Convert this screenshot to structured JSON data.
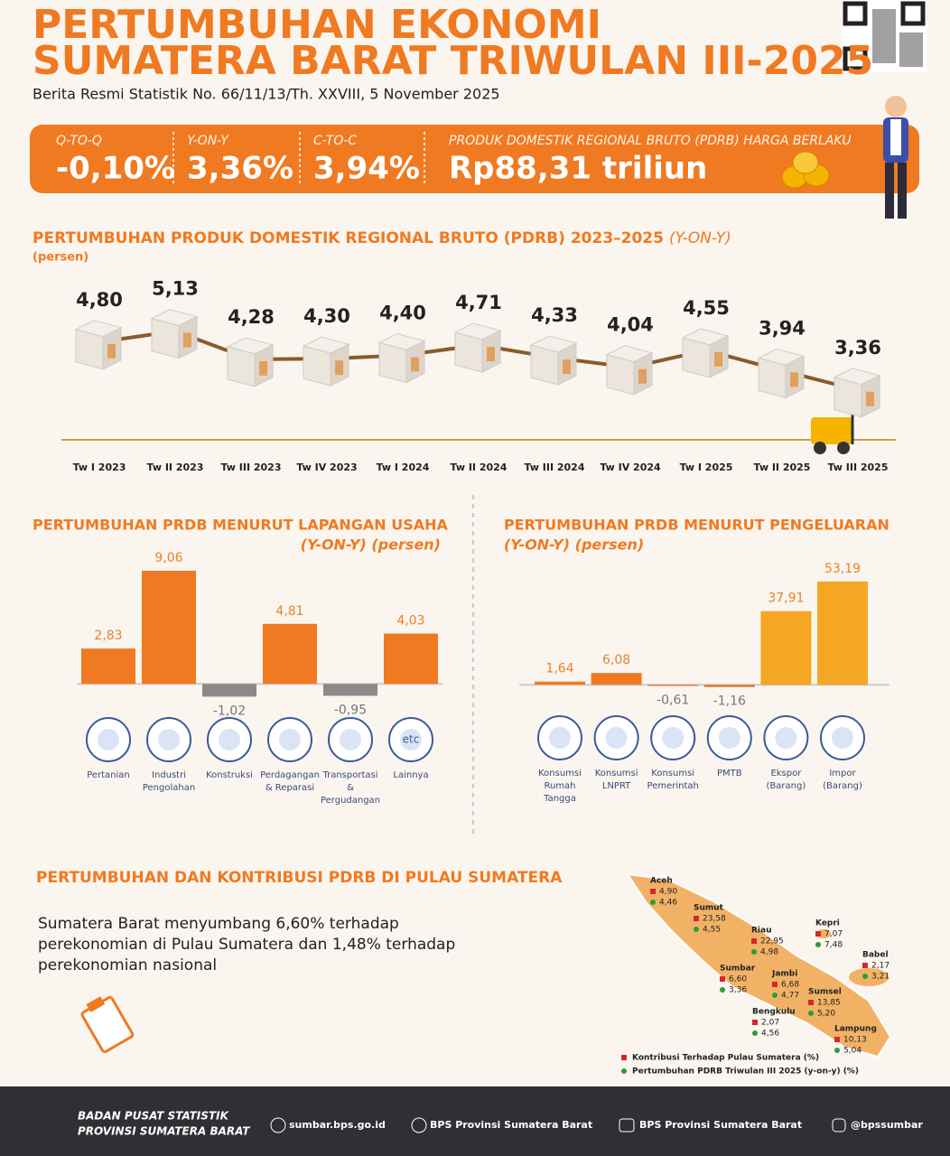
{
  "header": {
    "title_lines": [
      "PERTUMBUHAN EKONOMI",
      "SUMATERA BARAT TRIWULAN III-2025"
    ],
    "subtitle": "Berita Resmi Statistik No. 66/11/13/Th. XXVIII, 5 November 2025"
  },
  "banner": [
    {
      "label": "Q-TO-Q",
      "value": "-0,10%"
    },
    {
      "label": "Y-ON-Y",
      "value": "3,36%"
    },
    {
      "label": "C-TO-C",
      "value": "3,94%"
    },
    {
      "label": "PRODUK DOMESTIK REGIONAL BRUTO (PDRB) HARGA BERLAKU",
      "value": "Rp88,31 triliun"
    }
  ],
  "chart_data": [
    {
      "type": "line",
      "title": "PERTUMBUHAN PRODUK DOMESTIK REGIONAL BRUTO (PDRB) 2023–2025",
      "title_suffix": "(Y-ON-Y)",
      "subtitle": "(persen)",
      "categories": [
        "Tw I 2023",
        "Tw II 2023",
        "Tw III 2023",
        "Tw IV 2023",
        "Tw I 2024",
        "Tw II 2024",
        "Tw III 2024",
        "Tw IV 2024",
        "Tw I 2025",
        "Tw II 2025",
        "Tw III 2025"
      ],
      "values": [
        4.8,
        5.13,
        4.28,
        4.3,
        4.4,
        4.71,
        4.33,
        4.04,
        4.55,
        3.94,
        3.36
      ],
      "value_labels": [
        "4,80",
        "5,13",
        "4,28",
        "4,30",
        "4,40",
        "4,71",
        "4,33",
        "4,04",
        "4,55",
        "3,94",
        "3,36"
      ],
      "color": "#8b5a2b",
      "ylim": [
        3.0,
        5.5
      ]
    },
    {
      "type": "bar",
      "title": "PERTUMBUHAN PRDB MENURUT LAPANGAN USAHA",
      "subtitle": "(Y-ON-Y) (persen)",
      "categories": [
        "Pertanian",
        "Industri Pengolahan",
        "Konstruksi",
        "Perdagangan & Reparasi",
        "Transportasi & Pergudangan",
        "Lainnya"
      ],
      "values": [
        2.83,
        9.06,
        -1.02,
        4.81,
        -0.95,
        4.03
      ],
      "value_labels": [
        "2,83",
        "9,06",
        "-1,02",
        "4,81",
        "-0,95",
        "4,03"
      ],
      "color": "#f07a22",
      "negative_color": "#8a8a8a",
      "ylim": [
        -1.5,
        10
      ],
      "etc_icon": "etc"
    },
    {
      "type": "bar",
      "title": "PERTUMBUHAN PRDB MENURUT PENGELUARAN",
      "subtitle": "(Y-ON-Y) (persen)",
      "categories": [
        "Konsumsi Rumah Tangga",
        "Konsumsi LNPRT",
        "Konsumsi Pemerintah",
        "PMTB",
        "Ekspor (Barang)",
        "Impor (Barang)"
      ],
      "values": [
        1.64,
        6.08,
        -0.61,
        -1.16,
        37.91,
        53.19
      ],
      "value_labels": [
        "1,64",
        "6,08",
        "-0,61",
        "-1,16",
        "37,91",
        "53,19"
      ],
      "colors": [
        "#f07a22",
        "#f07a22",
        "#e07a3a",
        "#e07a3a",
        "#f5a623",
        "#f5a623"
      ],
      "ylim": [
        -5,
        55
      ]
    }
  ],
  "map": {
    "title": "PERTUMBUHAN DAN KONTRIBUSI PDRB DI PULAU SUMATERA",
    "text": "Sumatera Barat menyumbang 6,60% terhadap perekonomian di Pulau Sumatera dan 1,48% terhadap perekonomian nasional",
    "regions": [
      {
        "name": "Aceh",
        "contribution": "4,90",
        "growth": "4,46"
      },
      {
        "name": "Sumut",
        "contribution": "23,58",
        "growth": "4,55"
      },
      {
        "name": "Riau",
        "contribution": "22,95",
        "growth": "4,98"
      },
      {
        "name": "Kepri",
        "contribution": "7,07",
        "growth": "7,48"
      },
      {
        "name": "Babel",
        "contribution": "2,17",
        "growth": "3,21"
      },
      {
        "name": "Sumbar",
        "contribution": "6,60",
        "growth": "3,36"
      },
      {
        "name": "Jambi",
        "contribution": "6,68",
        "growth": "4,77"
      },
      {
        "name": "Sumsel",
        "contribution": "13,85",
        "growth": "5,20"
      },
      {
        "name": "Bengkulu",
        "contribution": "2,07",
        "growth": "4,56"
      },
      {
        "name": "Lampung",
        "contribution": "10,13",
        "growth": "5,04"
      }
    ],
    "legend": [
      "Kontribusi Terhadap Pulau Sumatera (%)",
      "Pertumbuhan PDRB Triwulan III 2025 (y-on-y) (%)"
    ]
  },
  "footer": {
    "org": [
      "BADAN PUSAT STATISTIK",
      "PROVINSI SUMATERA BARAT"
    ],
    "links": [
      "sumbar.bps.go.id",
      "BPS Provinsi Sumatera Barat",
      "BPS Provinsi Sumatera Barat",
      "@bpssumbar"
    ]
  }
}
